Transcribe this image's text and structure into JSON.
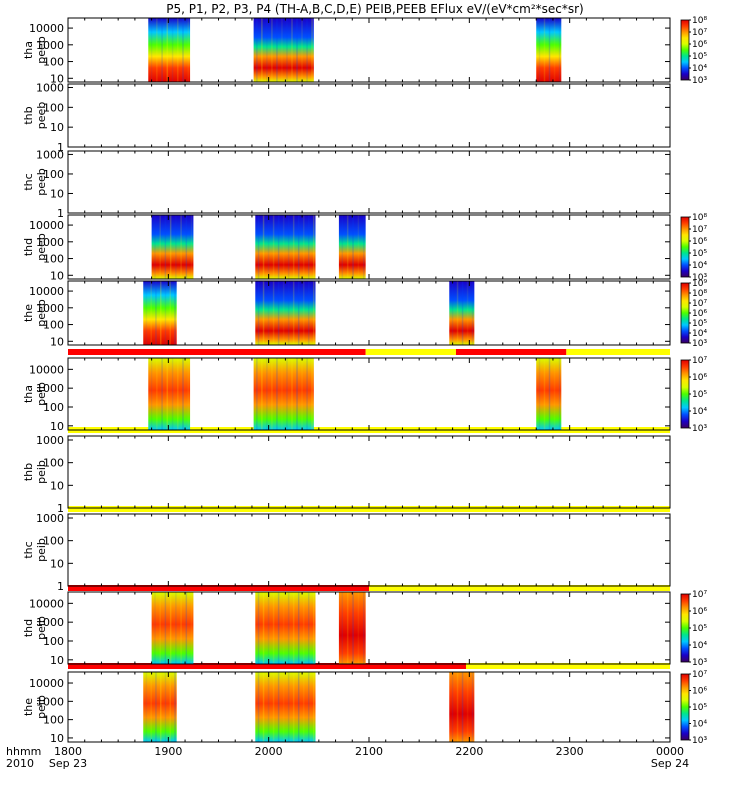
{
  "chart_data": {
    "type": "heatmap",
    "title": "P5, P1, P2, P3, P4 (TH-A,B,C,D,E) PEIB,PEEB EFlux eV/(eV*cm²*sec*sr)",
    "x_axis": {
      "label_top": "hhmm",
      "label_bottom": "2010",
      "tick_labels": [
        "1800",
        "1900",
        "2000",
        "2100",
        "2200",
        "2300",
        "0000"
      ],
      "date_labels": [
        "Sep 23",
        "",
        "",
        "",
        "",
        "",
        "Sep 24"
      ],
      "range": [
        "2010-09-23 18:00",
        "2010-09-24 00:00"
      ]
    },
    "y_scale": "log",
    "panels": [
      {
        "id": "tha-peeb",
        "label1": "tha",
        "label2": "peeb",
        "y_ticks": [
          "10",
          "100",
          "1000",
          "10000"
        ],
        "ylim": [
          6,
          40000
        ],
        "colorbar": {
          "ticks": [
            "10³",
            "10⁴",
            "10⁵",
            "10⁶",
            "10⁷",
            "10⁸"
          ],
          "range": [
            3,
            8
          ]
        },
        "blocks": [
          {
            "start": "18:48",
            "end": "19:13",
            "style": "hot_low",
            "flux_log10": [
              6,
              7.8
            ]
          },
          {
            "start": "19:51",
            "end": "20:27",
            "style": "warm_mid",
            "flux_log10": [
              5,
              7.5
            ]
          },
          {
            "start": "22:40",
            "end": "22:55",
            "style": "hot_low",
            "flux_log10": [
              6,
              7.8
            ]
          }
        ]
      },
      {
        "id": "thb-peeb",
        "label1": "thb",
        "label2": "peeb",
        "y_ticks": [
          "1",
          "10",
          "100",
          "1000"
        ],
        "ylim": [
          1,
          1500
        ],
        "blocks": []
      },
      {
        "id": "thc-peeb",
        "label1": "thc",
        "label2": "peeb",
        "y_ticks": [
          "1",
          "10",
          "100",
          "1000"
        ],
        "ylim": [
          1,
          1500
        ],
        "blocks": []
      },
      {
        "id": "thd-peeb",
        "label1": "thd",
        "label2": "peeb",
        "y_ticks": [
          "10",
          "100",
          "1000",
          "10000"
        ],
        "ylim": [
          6,
          40000
        ],
        "colorbar": {
          "ticks": [
            "10³",
            "10⁴",
            "10⁵",
            "10⁶",
            "10⁷",
            "10⁸"
          ],
          "range": [
            3,
            8
          ]
        },
        "blocks": [
          {
            "start": "18:50",
            "end": "19:15",
            "style": "warm_mid",
            "flux_log10": [
              5,
              7.5
            ]
          },
          {
            "start": "19:52",
            "end": "20:28",
            "style": "warm_mid",
            "flux_log10": [
              5,
              7.5
            ]
          },
          {
            "start": "20:42",
            "end": "20:58",
            "style": "warm_mid",
            "flux_log10": [
              5,
              7.5
            ]
          }
        ]
      },
      {
        "id": "the-peeb",
        "label1": "the",
        "label2": "peeb",
        "y_ticks": [
          "10",
          "100",
          "1000",
          "10000"
        ],
        "ylim": [
          6,
          40000
        ],
        "colorbar": {
          "ticks": [
            "10³",
            "10⁴",
            "10⁵",
            "10⁶",
            "10⁷",
            "10⁸",
            "10⁹"
          ],
          "range": [
            3,
            9
          ]
        },
        "blocks": [
          {
            "start": "18:45",
            "end": "19:05",
            "style": "hot_low",
            "flux_log10": [
              6,
              8
            ]
          },
          {
            "start": "19:52",
            "end": "20:28",
            "style": "warm_mid",
            "flux_log10": [
              5,
              7.5
            ]
          },
          {
            "start": "21:48",
            "end": "22:03",
            "style": "warm_mid",
            "flux_log10": [
              5,
              7.5
            ]
          }
        ]
      },
      {
        "id": "tha-peib",
        "label1": "tha",
        "label2": "peib",
        "y_ticks": [
          "10",
          "100",
          "1000",
          "10000"
        ],
        "ylim": [
          6,
          40000
        ],
        "colorbar": {
          "ticks": [
            "10³",
            "10⁴",
            "10⁵",
            "10⁶",
            "10⁷"
          ],
          "range": [
            3,
            7
          ]
        },
        "blocks": [
          {
            "start": "18:48",
            "end": "19:13",
            "style": "ion",
            "flux_log10": [
              5,
              7
            ]
          },
          {
            "start": "19:51",
            "end": "20:27",
            "style": "ion",
            "flux_log10": [
              5,
              7
            ]
          },
          {
            "start": "22:40",
            "end": "22:55",
            "style": "ion",
            "flux_log10": [
              5,
              7
            ]
          }
        ]
      },
      {
        "id": "thb-peib",
        "label1": "thb",
        "label2": "peib",
        "y_ticks": [
          "1",
          "10",
          "100",
          "1000"
        ],
        "ylim": [
          1,
          1500
        ],
        "blocks": []
      },
      {
        "id": "thc-peib",
        "label1": "thc",
        "label2": "peib",
        "y_ticks": [
          "1",
          "10",
          "100",
          "1000"
        ],
        "ylim": [
          1,
          1500
        ],
        "blocks": []
      },
      {
        "id": "thd-peib",
        "label1": "thd",
        "label2": "peib",
        "y_ticks": [
          "10",
          "100",
          "1000",
          "10000"
        ],
        "ylim": [
          6,
          40000
        ],
        "colorbar": {
          "ticks": [
            "10³",
            "10⁴",
            "10⁵",
            "10⁶",
            "10⁷"
          ],
          "range": [
            3,
            7
          ]
        },
        "blocks": [
          {
            "start": "18:50",
            "end": "19:15",
            "style": "ion",
            "flux_log10": [
              5,
              7
            ]
          },
          {
            "start": "19:52",
            "end": "20:28",
            "style": "ion",
            "flux_log10": [
              5,
              7
            ]
          },
          {
            "start": "20:42",
            "end": "20:58",
            "style": "ion_hot",
            "flux_log10": [
              6,
              7
            ]
          }
        ]
      },
      {
        "id": "the-peib",
        "label1": "the",
        "label2": "peib",
        "y_ticks": [
          "10",
          "100",
          "1000",
          "10000"
        ],
        "ylim": [
          6,
          40000
        ],
        "colorbar": {
          "ticks": [
            "10³",
            "10⁴",
            "10⁵",
            "10⁶",
            "10⁷"
          ],
          "range": [
            3,
            7
          ]
        },
        "blocks": [
          {
            "start": "18:45",
            "end": "19:05",
            "style": "ion",
            "flux_log10": [
              5,
              7
            ]
          },
          {
            "start": "19:52",
            "end": "20:28",
            "style": "ion",
            "flux_log10": [
              5,
              7
            ]
          },
          {
            "start": "21:48",
            "end": "22:03",
            "style": "ion_hot",
            "flux_log10": [
              6,
              7
            ]
          }
        ]
      }
    ],
    "mode_bars": [
      {
        "above_panel": "tha-peib",
        "segments": [
          {
            "start": "18:00",
            "end": "20:58",
            "color": "#ff0000"
          },
          {
            "start": "20:58",
            "end": "21:52",
            "color": "#ffff00"
          },
          {
            "start": "21:52",
            "end": "22:58",
            "color": "#ff0000"
          },
          {
            "start": "22:58",
            "end": "00:00",
            "color": "#ffff00"
          }
        ]
      },
      {
        "above_panel": "thb-peib",
        "segments": [
          {
            "start": "18:00",
            "end": "00:00",
            "color": "#ffff00"
          }
        ]
      },
      {
        "above_panel": "thc-peib",
        "segments": [
          {
            "start": "18:00",
            "end": "00:00",
            "color": "#ffff00"
          }
        ]
      },
      {
        "above_panel": "thd-peib",
        "segments": [
          {
            "start": "18:00",
            "end": "21:00",
            "color": "#ff0000"
          },
          {
            "start": "21:00",
            "end": "00:00",
            "color": "#ffff00"
          }
        ]
      },
      {
        "above_panel": "the-peib",
        "segments": [
          {
            "start": "18:00",
            "end": "21:58",
            "color": "#ff0000"
          },
          {
            "start": "21:58",
            "end": "00:00",
            "color": "#ffff00"
          }
        ]
      }
    ],
    "colormap": [
      "#3b0060",
      "#1a00c8",
      "#0050ff",
      "#00c8ff",
      "#00e68c",
      "#4cff00",
      "#d8ff00",
      "#ffe600",
      "#ff9600",
      "#ff3c00",
      "#e00000"
    ]
  }
}
